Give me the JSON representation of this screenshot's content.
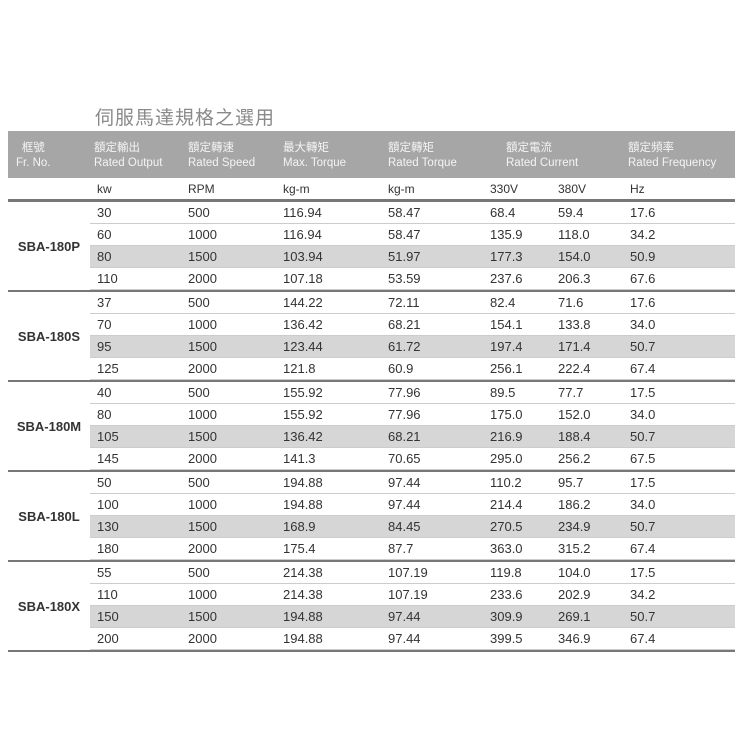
{
  "title": "伺服馬達規格之選用",
  "headers": [
    {
      "zh": "框號",
      "en": "Fr. No."
    },
    {
      "zh": "額定輸出",
      "en": "Rated Output"
    },
    {
      "zh": "額定轉速",
      "en": "Rated Speed"
    },
    {
      "zh": "最大轉矩",
      "en": "Max. Torque"
    },
    {
      "zh": "額定轉矩",
      "en": "Rated Torque"
    },
    {
      "zh": "額定電流",
      "en": "Rated Current"
    },
    {
      "zh": "額定頻率",
      "en": "Rated Frequency"
    }
  ],
  "units": [
    "kw",
    "RPM",
    "kg-m",
    "kg-m",
    "330V",
    "380V",
    "Hz"
  ],
  "groups": [
    {
      "frame": "SBA-180P",
      "rows": [
        [
          "30",
          "500",
          "116.94",
          "58.47",
          "68.4",
          "59.4",
          "17.6"
        ],
        [
          "60",
          "1000",
          "116.94",
          "58.47",
          "135.9",
          "118.0",
          "34.2"
        ],
        [
          "80",
          "1500",
          "103.94",
          "51.97",
          "177.3",
          "154.0",
          "50.9"
        ],
        [
          "110",
          "2000",
          "107.18",
          "53.59",
          "237.6",
          "206.3",
          "67.6"
        ]
      ]
    },
    {
      "frame": "SBA-180S",
      "rows": [
        [
          "37",
          "500",
          "144.22",
          "72.11",
          "82.4",
          "71.6",
          "17.6"
        ],
        [
          "70",
          "1000",
          "136.42",
          "68.21",
          "154.1",
          "133.8",
          "34.0"
        ],
        [
          "95",
          "1500",
          "123.44",
          "61.72",
          "197.4",
          "171.4",
          "50.7"
        ],
        [
          "125",
          "2000",
          "121.8",
          "60.9",
          "256.1",
          "222.4",
          "67.4"
        ]
      ]
    },
    {
      "frame": "SBA-180M",
      "rows": [
        [
          "40",
          "500",
          "155.92",
          "77.96",
          "89.5",
          "77.7",
          "17.5"
        ],
        [
          "80",
          "1000",
          "155.92",
          "77.96",
          "175.0",
          "152.0",
          "34.0"
        ],
        [
          "105",
          "1500",
          "136.42",
          "68.21",
          "216.9",
          "188.4",
          "50.7"
        ],
        [
          "145",
          "2000",
          "141.3",
          "70.65",
          "295.0",
          "256.2",
          "67.5"
        ]
      ]
    },
    {
      "frame": "SBA-180L",
      "rows": [
        [
          "50",
          "500",
          "194.88",
          "97.44",
          "110.2",
          "95.7",
          "17.5"
        ],
        [
          "100",
          "1000",
          "194.88",
          "97.44",
          "214.4",
          "186.2",
          "34.0"
        ],
        [
          "130",
          "1500",
          "168.9",
          "84.45",
          "270.5",
          "234.9",
          "50.7"
        ],
        [
          "180",
          "2000",
          "175.4",
          "87.7",
          "363.0",
          "315.2",
          "67.4"
        ]
      ]
    },
    {
      "frame": "SBA-180X",
      "rows": [
        [
          "55",
          "500",
          "214.38",
          "107.19",
          "119.8",
          "104.0",
          "17.5"
        ],
        [
          "110",
          "1000",
          "214.38",
          "107.19",
          "233.6",
          "202.9",
          "34.2"
        ],
        [
          "150",
          "1500",
          "194.88",
          "97.44",
          "309.9",
          "269.1",
          "50.7"
        ],
        [
          "200",
          "2000",
          "194.88",
          "97.44",
          "399.5",
          "346.9",
          "67.4"
        ]
      ]
    }
  ]
}
